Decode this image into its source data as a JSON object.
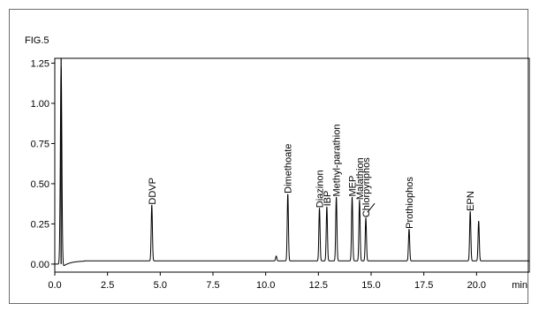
{
  "figure": {
    "label": "FIG.5"
  },
  "chart_data": {
    "type": "line",
    "title": "",
    "xlabel": "min",
    "ylabel": "",
    "xlim": [
      0.0,
      22.5
    ],
    "ylim": [
      -0.05,
      1.28
    ],
    "x_ticks": [
      0.0,
      2.5,
      5.0,
      7.5,
      10.0,
      12.5,
      15.0,
      17.5,
      20.0
    ],
    "x_tick_labels": [
      "0.0",
      "2.5",
      "5.0",
      "7.5",
      "10.0",
      "12.5",
      "15.0",
      "17.5",
      "20.0"
    ],
    "x_unit_label": "min",
    "y_ticks": [
      0.0,
      0.25,
      0.5,
      0.75,
      1.0,
      1.25
    ],
    "y_tick_labels": [
      "0.00",
      "0.25",
      "0.50",
      "0.75",
      "1.00",
      "1.25"
    ],
    "grid": false,
    "baseline": 0.02,
    "peaks": [
      {
        "label": "",
        "x": 0.3,
        "y": 1.28,
        "width": 0.05
      },
      {
        "label": "DDVP",
        "x": 4.6,
        "y": 0.37,
        "width": 0.04
      },
      {
        "label": "",
        "x": 10.5,
        "y": 0.05,
        "width": 0.04
      },
      {
        "label": "Dimethoate",
        "x": 11.05,
        "y": 0.44,
        "width": 0.04
      },
      {
        "label": "Diazinon",
        "x": 12.55,
        "y": 0.35,
        "width": 0.04
      },
      {
        "label": "IBP",
        "x": 12.9,
        "y": 0.36,
        "width": 0.04
      },
      {
        "label": "Methyl-parathion",
        "x": 13.35,
        "y": 0.42,
        "width": 0.04
      },
      {
        "label": "MEP",
        "x": 14.1,
        "y": 0.42,
        "width": 0.04
      },
      {
        "label": "Malathion",
        "x": 14.45,
        "y": 0.4,
        "width": 0.04
      },
      {
        "label": "Chlorpyriphos",
        "x": 14.75,
        "y": 0.29,
        "width": 0.04
      },
      {
        "label": "Prothiophos",
        "x": 16.8,
        "y": 0.22,
        "width": 0.04
      },
      {
        "label": "EPN",
        "x": 19.7,
        "y": 0.33,
        "width": 0.04
      },
      {
        "label": "",
        "x": 20.1,
        "y": 0.27,
        "width": 0.04
      }
    ]
  }
}
